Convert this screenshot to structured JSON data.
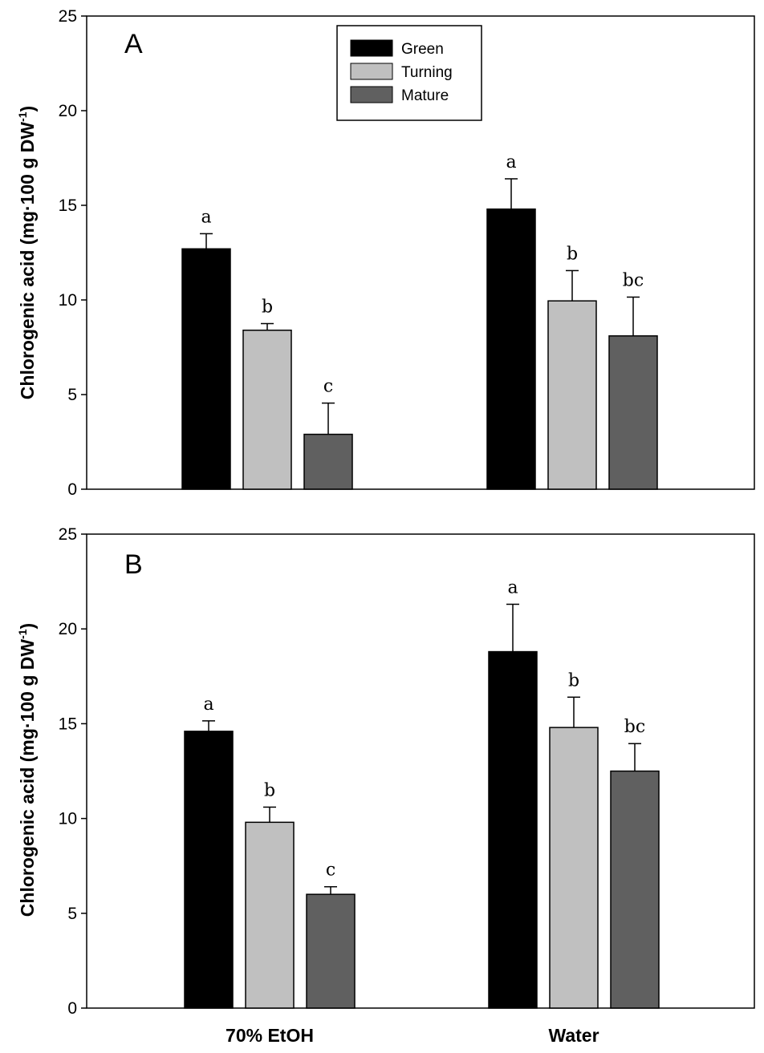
{
  "chart_data": [
    {
      "type": "bar",
      "panel": "A",
      "categories": [
        "70% EtOH",
        "Water"
      ],
      "series": [
        {
          "name": "Green",
          "color": "#000000",
          "values": [
            12.7,
            14.8
          ],
          "errors": [
            0.8,
            1.6
          ],
          "letters": [
            "a",
            "a"
          ]
        },
        {
          "name": "Turning",
          "color": "#c0c0c0",
          "values": [
            8.4,
            9.95
          ],
          "errors": [
            0.35,
            1.6
          ],
          "letters": [
            "b",
            "b"
          ]
        },
        {
          "name": "Mature",
          "color": "#606060",
          "values": [
            2.9,
            8.1
          ],
          "errors": [
            1.65,
            2.05
          ],
          "letters": [
            "c",
            "bc"
          ]
        }
      ],
      "ylabel": "Chlorogenic acid (mg·100 g DW⁻¹)",
      "ylabel_main": "Chlorogenic acid (mg·100 g DW",
      "ylabel_sup": "-1",
      "ylabel_close": ")",
      "ylim": [
        0,
        25
      ],
      "yticks": [
        "0",
        "5",
        "10",
        "15",
        "20",
        "25"
      ],
      "legend": {
        "position": "top-center",
        "entries": [
          "Green",
          "Turning",
          "Mature"
        ]
      }
    },
    {
      "type": "bar",
      "panel": "B",
      "categories": [
        "70% EtOH",
        "Water"
      ],
      "series": [
        {
          "name": "Green",
          "color": "#000000",
          "values": [
            14.6,
            18.8
          ],
          "errors": [
            0.55,
            2.5
          ],
          "letters": [
            "a",
            "a"
          ]
        },
        {
          "name": "Turning",
          "color": "#c0c0c0",
          "values": [
            9.8,
            14.8
          ],
          "errors": [
            0.8,
            1.6
          ],
          "letters": [
            "b",
            "b"
          ]
        },
        {
          "name": "Mature",
          "color": "#606060",
          "values": [
            6.0,
            12.5
          ],
          "errors": [
            0.4,
            1.45
          ],
          "letters": [
            "c",
            "bc"
          ]
        }
      ],
      "ylabel": "Chlorogenic acid (mg·100 g DW⁻¹)",
      "ylabel_main": "Chlorogenic acid (mg·100 g DW",
      "ylabel_sup": "-1",
      "ylabel_close": ")",
      "ylim": [
        0,
        25
      ],
      "yticks": [
        "0",
        "5",
        "10",
        "15",
        "20",
        "25"
      ],
      "xtick_labels": [
        "70% EtOH",
        "Water"
      ]
    }
  ]
}
